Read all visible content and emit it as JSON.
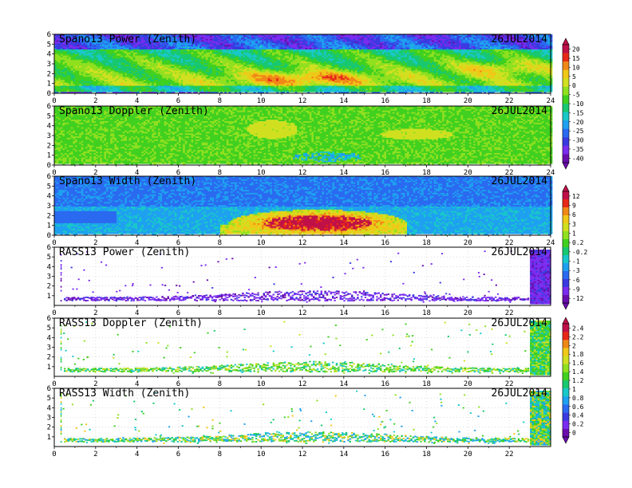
{
  "chart_data": [
    {
      "type": "heatmap",
      "title": "Spano13 Power (Zenith)",
      "date": "26JUL2014",
      "x_ticks": [
        "0",
        "2",
        "4",
        "6",
        "8",
        "10",
        "12",
        "14",
        "16",
        "18",
        "20",
        "22",
        "24"
      ],
      "y_ticks": [
        "0",
        "1",
        "2",
        "3",
        "4",
        "5",
        "6"
      ],
      "xlim": [
        0,
        24
      ],
      "ylim": [
        0,
        6
      ],
      "colorbar": {
        "labels": [
          "20",
          "15",
          "10",
          "5",
          "0",
          "-5",
          "-10",
          "-15",
          "-20",
          "-25",
          "-30",
          "-35",
          "-40"
        ],
        "range": [
          -40,
          20
        ]
      }
    },
    {
      "type": "heatmap",
      "title": "Spano13 Doppler (Zenith)",
      "date": "26JUL2014",
      "x_ticks": [
        "0",
        "2",
        "4",
        "6",
        "8",
        "10",
        "12",
        "14",
        "16",
        "18",
        "20",
        "22",
        "24"
      ],
      "y_ticks": [
        "0",
        "1",
        "2",
        "3",
        "4",
        "5",
        "6"
      ],
      "xlim": [
        0,
        24
      ],
      "ylim": [
        0,
        6
      ]
    },
    {
      "type": "heatmap",
      "title": "Spano13 Width (Zenith)",
      "date": "26JUL2014",
      "x_ticks": [
        "0",
        "2",
        "4",
        "6",
        "8",
        "10",
        "12",
        "14",
        "16",
        "18",
        "20",
        "22",
        "24"
      ],
      "y_ticks": [
        "0",
        "1",
        "2",
        "3",
        "4",
        "5",
        "6"
      ],
      "xlim": [
        0,
        24
      ],
      "ylim": [
        0,
        6
      ],
      "colorbar": {
        "labels": [
          "12",
          "9",
          "6",
          "3",
          "1",
          "0.2",
          "-0.2",
          "-1",
          "-3",
          "-6",
          "-9",
          "-12"
        ],
        "range": [
          -12,
          12
        ]
      }
    },
    {
      "type": "heatmap",
      "title": "RASS13 Power (Zenith)",
      "date": "26JUL2014",
      "x_ticks": [
        "0",
        "2",
        "4",
        "6",
        "8",
        "10",
        "12",
        "14",
        "16",
        "18",
        "20",
        "22"
      ],
      "y_ticks": [
        "1",
        "2",
        "3",
        "4",
        "5",
        "6"
      ],
      "xlim": [
        0,
        24
      ],
      "ylim": [
        0,
        6
      ]
    },
    {
      "type": "heatmap",
      "title": "RASS13 Doppler (Zenith)",
      "date": "26JUL2014",
      "x_ticks": [
        "0",
        "2",
        "4",
        "6",
        "8",
        "10",
        "12",
        "14",
        "16",
        "18",
        "20",
        "22"
      ],
      "y_ticks": [
        "1",
        "2",
        "3",
        "4",
        "5",
        "6"
      ],
      "xlim": [
        0,
        24
      ],
      "ylim": [
        0,
        6
      ],
      "colorbar": {
        "labels": [
          "2.4",
          "2.2",
          "2",
          "1.8",
          "1.6",
          "1.4",
          "1.2",
          "1",
          "0.8",
          "0.6",
          "0.4",
          "0.2",
          "0"
        ],
        "range": [
          0,
          2.4
        ]
      }
    },
    {
      "type": "heatmap",
      "title": "RASS13 Width (Zenith)",
      "date": "26JUL2014",
      "x_ticks": [
        "0",
        "2",
        "4",
        "6",
        "8",
        "10",
        "12",
        "14",
        "16",
        "18",
        "20",
        "22"
      ],
      "y_ticks": [
        "1",
        "2",
        "3",
        "4",
        "5",
        "6"
      ],
      "xlim": [
        0,
        24
      ],
      "ylim": [
        0,
        6
      ]
    }
  ],
  "colors": {
    "spectrum": [
      "#6a0dad",
      "#7a2cf0",
      "#3a3ae0",
      "#2a6af0",
      "#1fa0f0",
      "#19c8c8",
      "#18c870",
      "#40d020",
      "#90e020",
      "#d0e020",
      "#f0c818",
      "#f08818",
      "#e82818",
      "#c01048"
    ]
  }
}
